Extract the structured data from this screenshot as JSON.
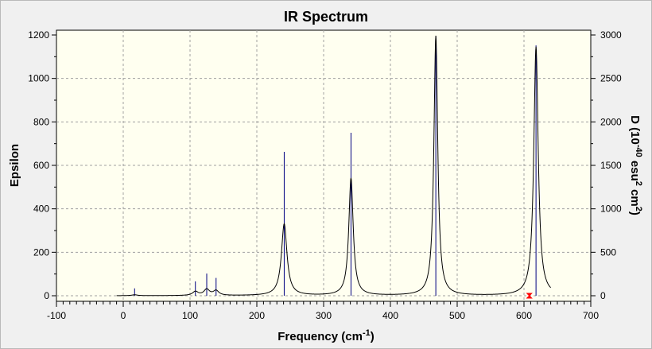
{
  "chart_data": {
    "type": "line",
    "title": "IR Spectrum",
    "xlabel": "Frequency (cm",
    "xlabel_sup": "-1",
    "xlabel_end": ")",
    "ylabel": "Epsilon",
    "y2label": "D (10",
    "y2label_sup1": "-40",
    "y2label_mid": " esu",
    "y2label_sup2": "2",
    "y2label_mid2": " cm",
    "y2label_sup3": "2",
    "y2label_end": ")",
    "xlim": [
      -100,
      700
    ],
    "ylim": [
      0,
      1200
    ],
    "y2lim": [
      0,
      3000
    ],
    "xticks": [
      -100,
      0,
      100,
      200,
      300,
      400,
      500,
      600,
      700
    ],
    "yticks": [
      0,
      200,
      400,
      600,
      800,
      1000,
      1200
    ],
    "y2ticks": [
      0,
      500,
      1000,
      1500,
      2000,
      2500,
      3000
    ],
    "grid": true,
    "line_color": "#000000",
    "stick_color": "#000080",
    "marker_color": "#ff0000",
    "sticks": [
      {
        "x": 17,
        "d": 85
      },
      {
        "x": 108,
        "d": 165
      },
      {
        "x": 125,
        "d": 255
      },
      {
        "x": 139,
        "d": 205
      },
      {
        "x": 241,
        "d": 1655
      },
      {
        "x": 341,
        "d": 1875
      },
      {
        "x": 468,
        "d": 2985
      },
      {
        "x": 618,
        "d": 2880
      }
    ],
    "peaks": [
      {
        "x": 17,
        "h": 4,
        "w": 10
      },
      {
        "x": 108,
        "h": 18,
        "w": 10
      },
      {
        "x": 125,
        "h": 28,
        "w": 10
      },
      {
        "x": 139,
        "h": 22,
        "w": 10
      },
      {
        "x": 241,
        "h": 330,
        "w": 10
      },
      {
        "x": 341,
        "h": 540,
        "w": 8
      },
      {
        "x": 468,
        "h": 1195,
        "w": 7
      },
      {
        "x": 618,
        "h": 1145,
        "w": 8
      }
    ],
    "curve_range": [
      -10,
      640
    ],
    "marker_x": 608
  }
}
